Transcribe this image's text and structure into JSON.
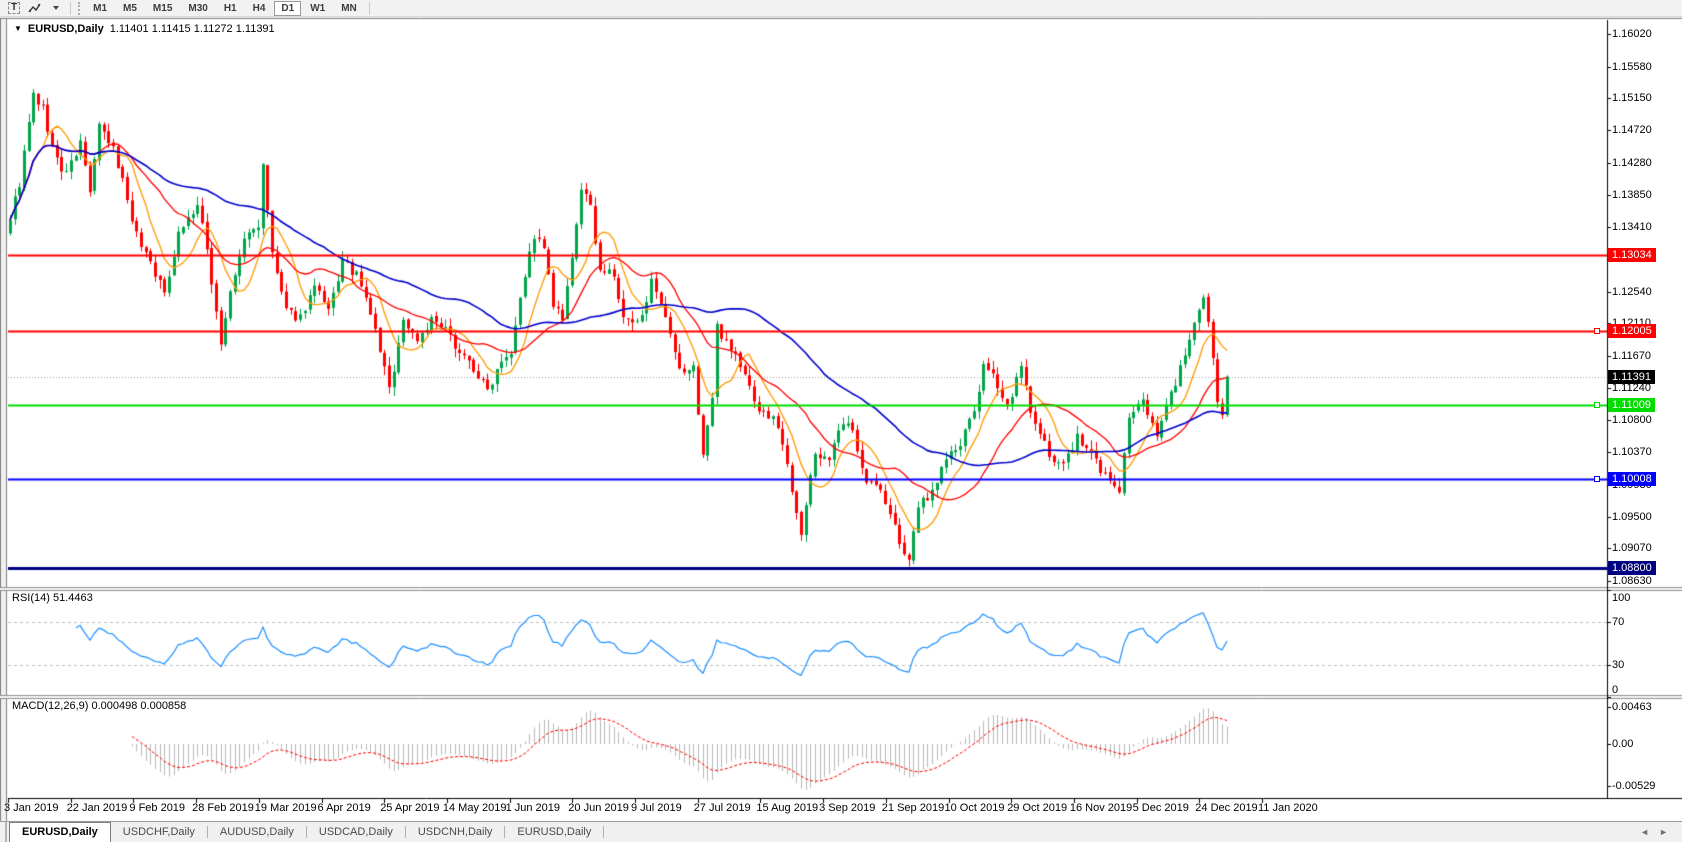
{
  "toolbar": {
    "text_tool_label": "T",
    "timeframes": [
      "M1",
      "M5",
      "M15",
      "M30",
      "H1",
      "H4",
      "D1",
      "W1",
      "MN"
    ],
    "active_timeframe": "D1"
  },
  "chart_header": {
    "dropdown_icon": "▼",
    "symbol": "EURUSD,Daily",
    "quote": "1.11401 1.11415 1.11272 1.11391"
  },
  "rsi_panel": {
    "label": "RSI(14) 51.4463",
    "ticks": [
      {
        "label": "100",
        "value": 100
      },
      {
        "label": "70",
        "value": 70
      },
      {
        "label": "30",
        "value": 30
      },
      {
        "label": "0",
        "value": 0
      }
    ],
    "levels": [
      70,
      30
    ],
    "line_color": "#1E90FF"
  },
  "macd_panel": {
    "label": "MACD(12,26,9) 0.000498 0.000858",
    "ticks": [
      {
        "label": "0.00463",
        "value": 0.00463
      },
      {
        "label": "0.00",
        "value": 0
      },
      {
        "label": "-0.00529",
        "value": -0.00529
      }
    ],
    "histogram_color": "#B9B9B9",
    "signal_color": "#FF0000"
  },
  "tab_bar": {
    "tabs": [
      "EURUSD,Daily",
      "USDCHF,Daily",
      "AUDUSD,Daily",
      "USDCAD,Daily",
      "USDCNH,Daily",
      "EURUSD,Daily"
    ],
    "active_index": 0,
    "scroll_left_icon": "◄",
    "scroll_right_icon": "►"
  },
  "chart_data": {
    "type": "candlestick",
    "symbol": "EURUSD",
    "timeframe": "Daily",
    "ohlc": {
      "open": 1.11401,
      "high": 1.11415,
      "low": 1.11272,
      "close": 1.11391
    },
    "price_ticks": [
      "1.16020",
      "1.15580",
      "1.15150",
      "1.14720",
      "1.14280",
      "1.13850",
      "1.13410",
      "1.12980",
      "1.12540",
      "1.12110",
      "1.11670",
      "1.11240",
      "1.10800",
      "1.10370",
      "1.09930",
      "1.09500",
      "1.09070",
      "1.08630"
    ],
    "x_axis_dates": [
      "3 Jan 2019",
      "22 Jan 2019",
      "9 Feb 2019",
      "28 Feb 2019",
      "19 Mar 2019",
      "6 Apr 2019",
      "25 Apr 2019",
      "14 May 2019",
      "1 Jun 2019",
      "20 Jun 2019",
      "9 Jul 2019",
      "27 Jul 2019",
      "15 Aug 2019",
      "3 Sep 2019",
      "21 Sep 2019",
      "10 Oct 2019",
      "29 Oct 2019",
      "16 Nov 2019",
      "5 Dec 2019",
      "24 Dec 2019",
      "11 Jan 2020"
    ],
    "visible_price_range": [
      1.08562,
      1.16195
    ],
    "current_price": {
      "price": 1.11391,
      "label": "1.11391",
      "flag_bg": "#000000",
      "line_color": "#A8A8A8"
    },
    "hlines": [
      {
        "price": 1.13034,
        "label": "1.13034",
        "color": "#FF0000",
        "width": 2,
        "handle": false
      },
      {
        "price": 1.12005,
        "label": "1.12005",
        "color": "#FF0000",
        "width": 2,
        "handle": true
      },
      {
        "price": 1.11009,
        "label": "1.11009",
        "color": "#00DC00",
        "width": 2,
        "handle": true
      },
      {
        "price": 1.10008,
        "label": "1.10008",
        "color": "#0000FF",
        "width": 2,
        "handle": true
      },
      {
        "price": 1.088,
        "label": "1.08800",
        "color": "#000080",
        "width": 3,
        "handle": false
      }
    ],
    "candle_colors": {
      "up": "#00A54A",
      "down": "#FF0000"
    },
    "moving_averages": [
      {
        "period": 8,
        "color": "#FF9900"
      },
      {
        "period": 20,
        "color": "#FF0000"
      },
      {
        "period": 50,
        "color": "#0000CD"
      }
    ],
    "indicators": {
      "rsi": {
        "period": 14,
        "value": 51.4463
      },
      "macd": {
        "fast": 12,
        "slow": 26,
        "signal": 9,
        "main_value": 0.000498,
        "signal_value": 0.000858
      }
    },
    "candles": {
      "count": 261,
      "seed": 9,
      "noise": 0.0007,
      "wick": 0.0012,
      "anchors": [
        [
          0,
          1.1355
        ],
        [
          2,
          1.14
        ],
        [
          5,
          1.152
        ],
        [
          7,
          1.15
        ],
        [
          9,
          1.145
        ],
        [
          11,
          1.1415
        ],
        [
          13,
          1.1425
        ],
        [
          15,
          1.1455
        ],
        [
          17,
          1.139
        ],
        [
          19,
          1.1475
        ],
        [
          22,
          1.1445
        ],
        [
          24,
          1.1405
        ],
        [
          27,
          1.133
        ],
        [
          30,
          1.1295
        ],
        [
          33,
          1.125
        ],
        [
          36,
          1.1335
        ],
        [
          40,
          1.137
        ],
        [
          42,
          1.131
        ],
        [
          45,
          1.1185
        ],
        [
          47,
          1.125
        ],
        [
          50,
          1.1325
        ],
        [
          53,
          1.1345
        ],
        [
          54,
          1.142
        ],
        [
          56,
          1.1305
        ],
        [
          59,
          1.1225
        ],
        [
          62,
          1.122
        ],
        [
          65,
          1.126
        ],
        [
          68,
          1.1225
        ],
        [
          71,
          1.1295
        ],
        [
          74,
          1.1275
        ],
        [
          77,
          1.1225
        ],
        [
          80,
          1.115
        ],
        [
          81,
          1.112
        ],
        [
          84,
          1.1215
        ],
        [
          87,
          1.119
        ],
        [
          90,
          1.1215
        ],
        [
          93,
          1.12
        ],
        [
          96,
          1.1175
        ],
        [
          99,
          1.115
        ],
        [
          102,
          1.112
        ],
        [
          105,
          1.1165
        ],
        [
          107,
          1.1175
        ],
        [
          109,
          1.125
        ],
        [
          112,
          1.133
        ],
        [
          114,
          1.131
        ],
        [
          116,
          1.1235
        ],
        [
          118,
          1.1215
        ],
        [
          120,
          1.1295
        ],
        [
          122,
          1.1395
        ],
        [
          124,
          1.1365
        ],
        [
          126,
          1.1285
        ],
        [
          129,
          1.1275
        ],
        [
          131,
          1.1215
        ],
        [
          134,
          1.121
        ],
        [
          137,
          1.1265
        ],
        [
          140,
          1.1215
        ],
        [
          143,
          1.1145
        ],
        [
          146,
          1.115
        ],
        [
          148,
          1.1035
        ],
        [
          150,
          1.111
        ],
        [
          151,
          1.1205
        ],
        [
          154,
          1.118
        ],
        [
          157,
          1.114
        ],
        [
          160,
          1.1095
        ],
        [
          164,
          1.1075
        ],
        [
          167,
          1.099
        ],
        [
          169,
          1.093
        ],
        [
          172,
          1.1035
        ],
        [
          175,
          1.103
        ],
        [
          178,
          1.1075
        ],
        [
          180,
          1.1065
        ],
        [
          183,
          1.1
        ],
        [
          186,
          1.0985
        ],
        [
          189,
          1.0935
        ],
        [
          192,
          1.0885
        ],
        [
          194,
          1.0965
        ],
        [
          197,
          1.0985
        ],
        [
          200,
          1.103
        ],
        [
          203,
          1.1045
        ],
        [
          206,
          1.1095
        ],
        [
          208,
          1.115
        ],
        [
          211,
          1.113
        ],
        [
          213,
          1.11
        ],
        [
          216,
          1.115
        ],
        [
          219,
          1.107
        ],
        [
          222,
          1.1035
        ],
        [
          225,
          1.102
        ],
        [
          228,
          1.1055
        ],
        [
          231,
          1.1035
        ],
        [
          234,
          1.1005
        ],
        [
          237,
          1.0985
        ],
        [
          239,
          1.108
        ],
        [
          242,
          1.1105
        ],
        [
          245,
          1.1065
        ],
        [
          248,
          1.1115
        ],
        [
          251,
          1.117
        ],
        [
          253,
          1.1205
        ],
        [
          255,
          1.124
        ],
        [
          256,
          1.1215
        ],
        [
          257,
          1.116
        ],
        [
          258,
          1.1105
        ],
        [
          259,
          1.109
        ],
        [
          260,
          1.1139
        ]
      ]
    }
  }
}
